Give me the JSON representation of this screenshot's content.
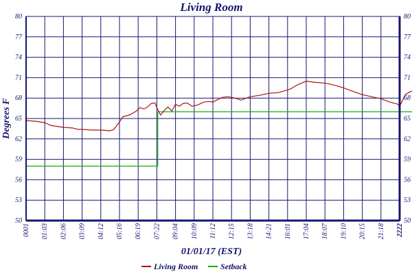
{
  "chart_data": {
    "type": "line",
    "title": "Living Room",
    "xlabel": "01/01/17 (EST)",
    "ylabel": "Degrees F",
    "ylim": [
      50,
      80
    ],
    "y_ticks": [
      "50",
      "53",
      "56",
      "59",
      "62",
      "65",
      "68",
      "71",
      "74",
      "77",
      "80"
    ],
    "x_tick_labels": [
      "0001",
      "01:03",
      "02:06",
      "03:09",
      "04:12",
      "05:16",
      "06:19",
      "07:22",
      "09:04",
      "10:09",
      "11:12",
      "12:15",
      "13:18",
      "14:21",
      "16:01",
      "17:04",
      "18:07",
      "19:10",
      "20:15",
      "21:18",
      "2222"
    ],
    "grid": true,
    "legend_position": "bottom",
    "series": [
      {
        "name": "Living Room",
        "color": "#aa1111",
        "x": [
          0,
          0.5,
          1,
          1.3,
          1.5,
          2,
          2.5,
          2.8,
          3,
          3.5,
          4,
          4.5,
          4.7,
          5,
          5.2,
          5.4,
          5.6,
          5.9,
          6.1,
          6.3,
          6.5,
          6.7,
          6.9,
          7.0,
          7.2,
          7.4,
          7.6,
          7.8,
          8.0,
          8.2,
          8.4,
          8.6,
          8.9,
          9.2,
          9.5,
          9.8,
          10.0,
          10.2,
          10.5,
          10.8,
          11.0,
          11.2,
          11.5,
          12,
          12.5,
          13,
          13.5,
          14,
          14.2,
          14.5,
          15,
          15.5,
          16,
          16.5,
          17,
          17.5,
          18,
          18.5,
          19,
          19.5,
          19.9,
          20,
          20.3,
          20.6,
          21
        ],
        "values": [
          64.7,
          64.6,
          64.4,
          64.0,
          63.9,
          63.7,
          63.6,
          63.4,
          63.4,
          63.3,
          63.3,
          63.2,
          63.4,
          64.5,
          65.3,
          65.4,
          65.6,
          66.1,
          66.6,
          66.4,
          66.7,
          67.2,
          67.3,
          66.6,
          65.5,
          66.2,
          66.7,
          66.1,
          67.1,
          66.8,
          67.2,
          67.3,
          66.8,
          67.0,
          67.4,
          67.5,
          67.4,
          67.7,
          68.1,
          68.2,
          68.1,
          68.0,
          67.7,
          68.2,
          68.4,
          68.7,
          68.8,
          69.2,
          69.4,
          69.9,
          70.5,
          70.3,
          70.2,
          69.9,
          69.5,
          69.0,
          68.5,
          68.2,
          67.9,
          67.4,
          67.1,
          66.8,
          68.5,
          69.0,
          69.1
        ]
      },
      {
        "name": "Setback",
        "color": "#11aa11",
        "x": [
          0,
          7.05,
          7.05,
          21
        ],
        "values": [
          58,
          58,
          66,
          66
        ]
      }
    ]
  }
}
